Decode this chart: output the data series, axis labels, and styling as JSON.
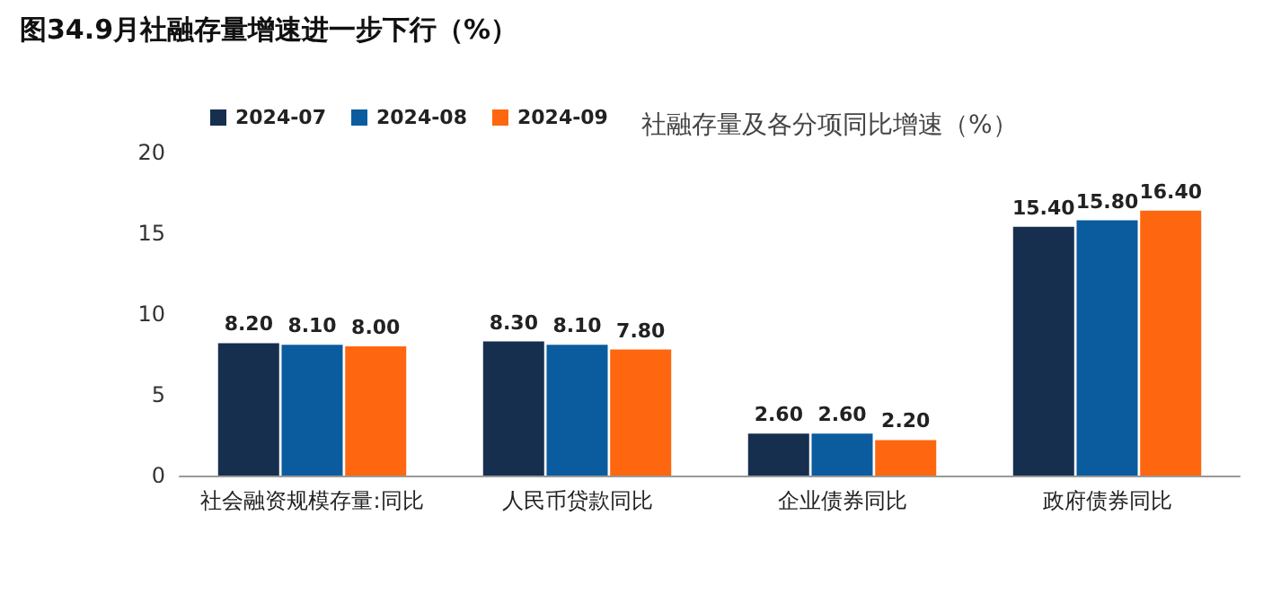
{
  "chart_data": {
    "type": "bar",
    "title": "图34.9月社融存量增速进一步下行（%）",
    "subtitle": "社融存量及各分项同比增速（%）",
    "categories": [
      "社会融资规模存量:同比",
      "人民币贷款同比",
      "企业债券同比",
      "政府债券同比"
    ],
    "series": [
      {
        "name": "2024-07",
        "color": "#172f4f",
        "values": [
          8.2,
          8.3,
          2.6,
          15.4
        ],
        "value_labels": [
          "8.20",
          "8.30",
          "2.60",
          "15.40"
        ]
      },
      {
        "name": "2024-08",
        "color": "#0a5c9e",
        "values": [
          8.1,
          8.1,
          2.6,
          15.8
        ],
        "value_labels": [
          "8.10",
          "8.10",
          "2.60",
          "15.80"
        ]
      },
      {
        "name": "2024-09",
        "color": "#ff6610",
        "values": [
          8.0,
          7.8,
          2.2,
          16.4
        ],
        "value_labels": [
          "8.00",
          "7.80",
          "2.20",
          "16.40"
        ]
      }
    ],
    "ylim": [
      0,
      20
    ],
    "yticks": [
      0,
      5,
      10,
      15,
      20
    ],
    "grid": false,
    "legend": "top left"
  }
}
